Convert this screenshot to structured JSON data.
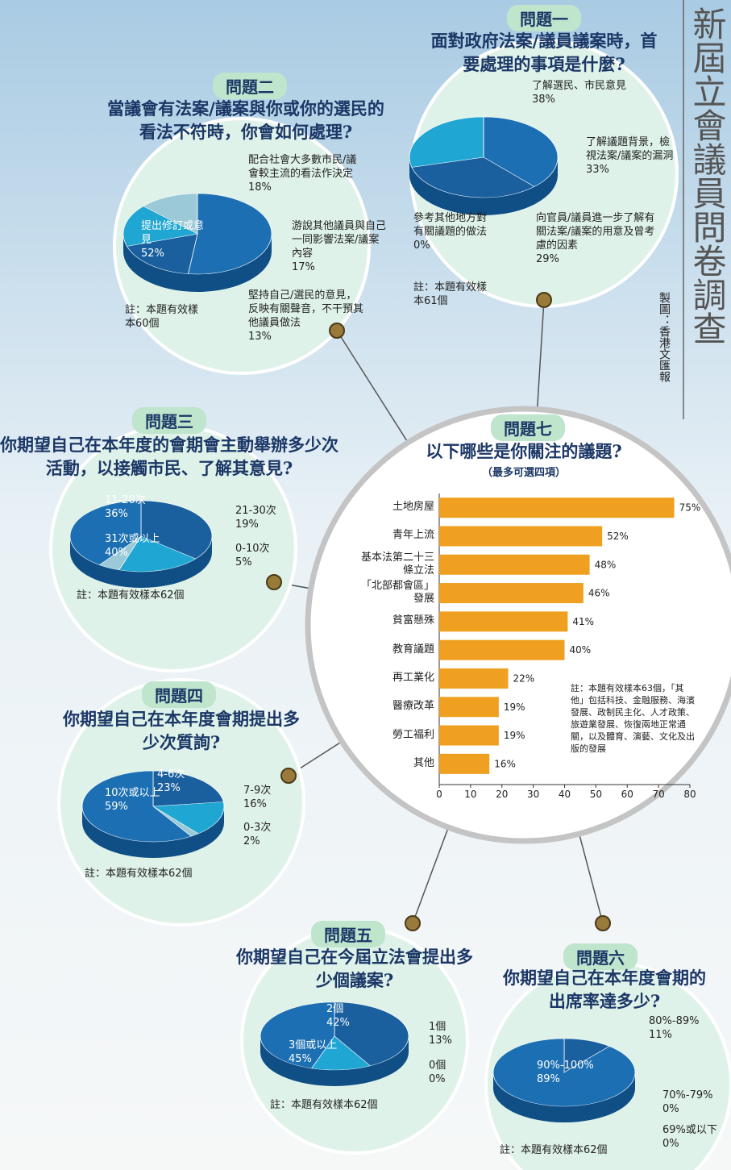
{
  "title": "新屆立會議員問卷調查",
  "credit": "製圖：香港文匯報",
  "chart_data": [
    {
      "type": "pie",
      "label": "問題一",
      "title": "面對政府法案/議員議案時，首要處理的事項是什麼?",
      "categories": [
        "了解選民、市民意見",
        "了解議題背景，檢視法案/議案的漏洞",
        "向官員/議員進一步了解有關法案/議案的用意及曾考慮的因素",
        "參考其他地方對有關議題的做法"
      ],
      "values": [
        38,
        33,
        29,
        0
      ],
      "value_labels": [
        "38%",
        "33%",
        "29%",
        "0%"
      ],
      "colors": [
        "#1c6fb3",
        "#1a5f9e",
        "#1fa6d3",
        "#8cc6dd"
      ],
      "note": "註：本題有效樣本61個"
    },
    {
      "type": "pie",
      "label": "問題二",
      "title": "當議會有法案/議案與你或你的選民的看法不符時，你會如何處理?",
      "categories": [
        "提出修訂或意見",
        "配合社會大多數市民/議會較主流的看法作決定",
        "游說其他議員與自己一同影響法案/議案內容",
        "堅持自己/選民的意見，反映有關聲音，不干預其他議員做法"
      ],
      "values": [
        52,
        18,
        17,
        13
      ],
      "value_labels": [
        "52%",
        "18%",
        "17%",
        "13%"
      ],
      "colors": [
        "#1c6fb3",
        "#1a5f9e",
        "#1fa6d3",
        "#9cc9d8"
      ],
      "note": "註：本題有效樣本60個"
    },
    {
      "type": "pie",
      "label": "問題三",
      "title": "你期望自己在本年度的會期會主動舉辦多少次活動，以接觸市民、了解其意見?",
      "categories": [
        "11-20次",
        "21-30次",
        "0-10次",
        "31次或以上"
      ],
      "values": [
        36,
        19,
        5,
        40
      ],
      "value_labels": [
        "36%",
        "19%",
        "5%",
        "40%"
      ],
      "colors": [
        "#1a5f9e",
        "#1fa6d3",
        "#9cc9d8",
        "#1c6fb3"
      ],
      "note": "註：本題有效樣本62個"
    },
    {
      "type": "pie",
      "label": "問題四",
      "title": "你期望自己在本年度會期提出多少次質詢?",
      "categories": [
        "4-6次",
        "7-9次",
        "0-3次",
        "10次或以上"
      ],
      "values": [
        23,
        16,
        2,
        59
      ],
      "value_labels": [
        "23%",
        "16%",
        "2%",
        "59%"
      ],
      "colors": [
        "#1a5f9e",
        "#1fa6d3",
        "#9cc9d8",
        "#1c6fb3"
      ],
      "note": "註：本題有效樣本62個"
    },
    {
      "type": "pie",
      "label": "問題五",
      "title": "你期望自己在今屆立法會提出多少個議案?",
      "categories": [
        "2個",
        "1個",
        "0個",
        "3個或以上"
      ],
      "values": [
        42,
        13,
        0,
        45
      ],
      "value_labels": [
        "42%",
        "13%",
        "0%",
        "45%"
      ],
      "colors": [
        "#1a5f9e",
        "#1fa6d3",
        "#9cc9d8",
        "#1c6fb3"
      ],
      "note": "註：本題有效樣本62個"
    },
    {
      "type": "pie",
      "label": "問題六",
      "title": "你期望自己在本年度會期的出席率達多少?",
      "categories": [
        "80%-89%",
        "70%-79%",
        "69%或以下",
        "90%-100%"
      ],
      "values": [
        11,
        0,
        0,
        89
      ],
      "value_labels": [
        "11%",
        "0%",
        "0%",
        "89%"
      ],
      "colors": [
        "#1a5f9e",
        "#1fa6d3",
        "#9cc9d8",
        "#1c6fb3"
      ],
      "note": "註：本題有效樣本62個"
    },
    {
      "type": "bar",
      "label": "問題七",
      "title": "以下哪些是你關注的議題?",
      "subtitle": "（最多可選四項）",
      "categories": [
        "土地房屋",
        "青年上流",
        "基本法第二十三條立法",
        "「北部都會區」發展",
        "貧富懸殊",
        "教育議題",
        "再工業化",
        "醫療改革",
        "勞工福利",
        "其他"
      ],
      "values": [
        75,
        52,
        48,
        46,
        41,
        40,
        22,
        19,
        19,
        16
      ],
      "value_labels": [
        "75%",
        "52%",
        "48%",
        "46%",
        "41%",
        "40%",
        "22%",
        "19%",
        "19%",
        "16%"
      ],
      "color": "#f0a020",
      "xlim": [
        0,
        80
      ],
      "xticks": [
        0,
        10,
        20,
        30,
        40,
        50,
        60,
        70,
        80
      ],
      "note": "註：本題有效樣本63個，「其他」包括科技、金融服務、海濱發展、政制民主化、人才政策、旅遊業發展、恢復兩地正常通關，以及體育、演藝、文化及出版的發展"
    }
  ]
}
